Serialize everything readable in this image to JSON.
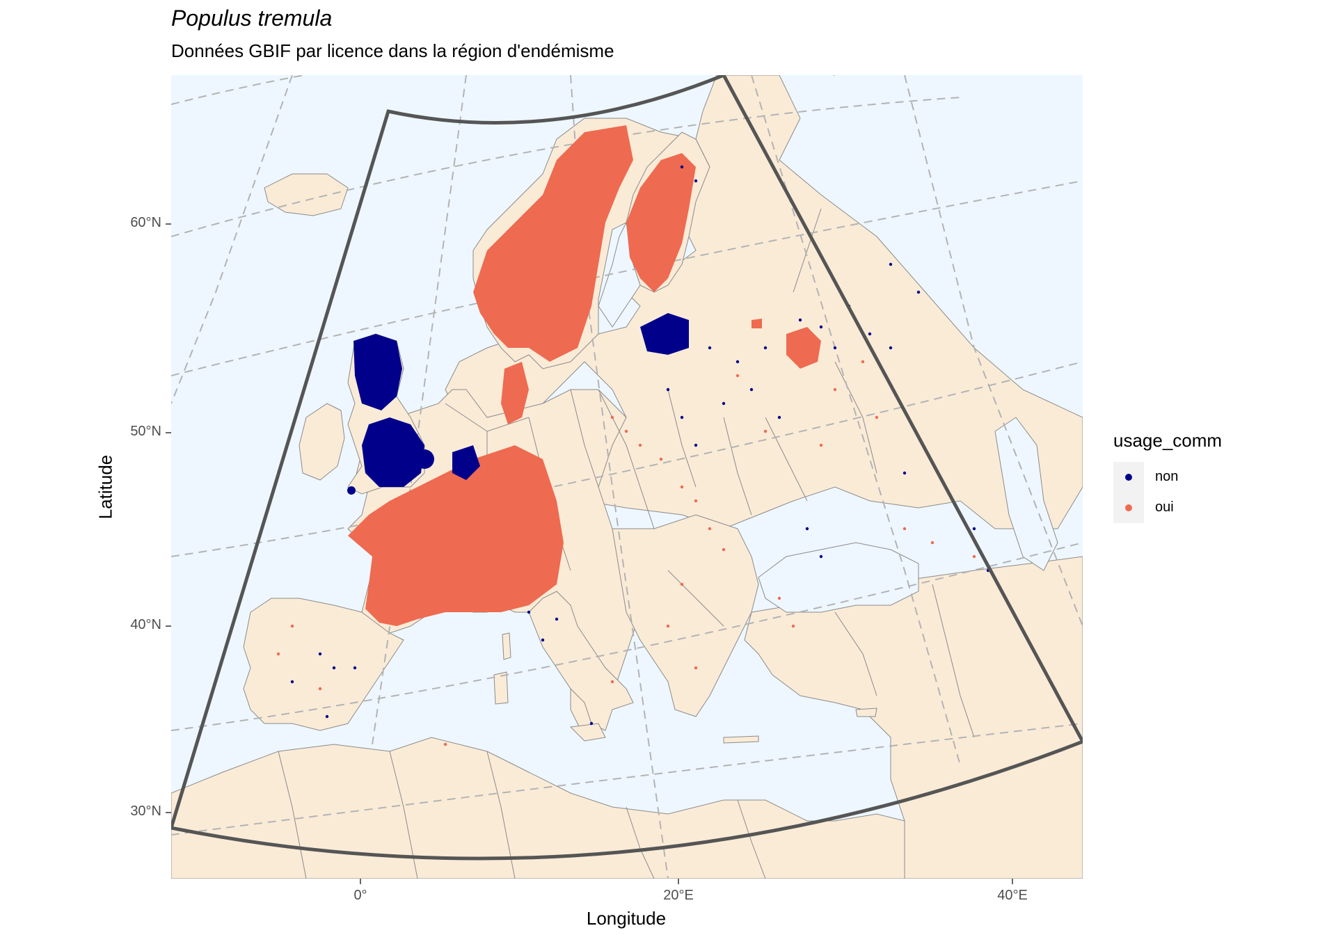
{
  "title": "Populus tremula",
  "subtitle": "Données GBIF par licence dans la région d'endémisme",
  "axes": {
    "xlabel": "Longitude",
    "ylabel": "Latitude",
    "xticks": [
      "0°",
      "20°E",
      "40°E"
    ],
    "yticks": [
      "60°N",
      "50°N",
      "40°N",
      "30°N"
    ]
  },
  "legend": {
    "title": "usage_comm",
    "items": [
      {
        "label": "non",
        "color": "#00008b"
      },
      {
        "label": "oui",
        "color": "#ee6a50"
      }
    ]
  },
  "colors": {
    "sea": "#eef7ff",
    "land": "#faebd7",
    "border": "#8a8a8a",
    "graticule": "#b3b3b3",
    "region": "#555555"
  }
}
